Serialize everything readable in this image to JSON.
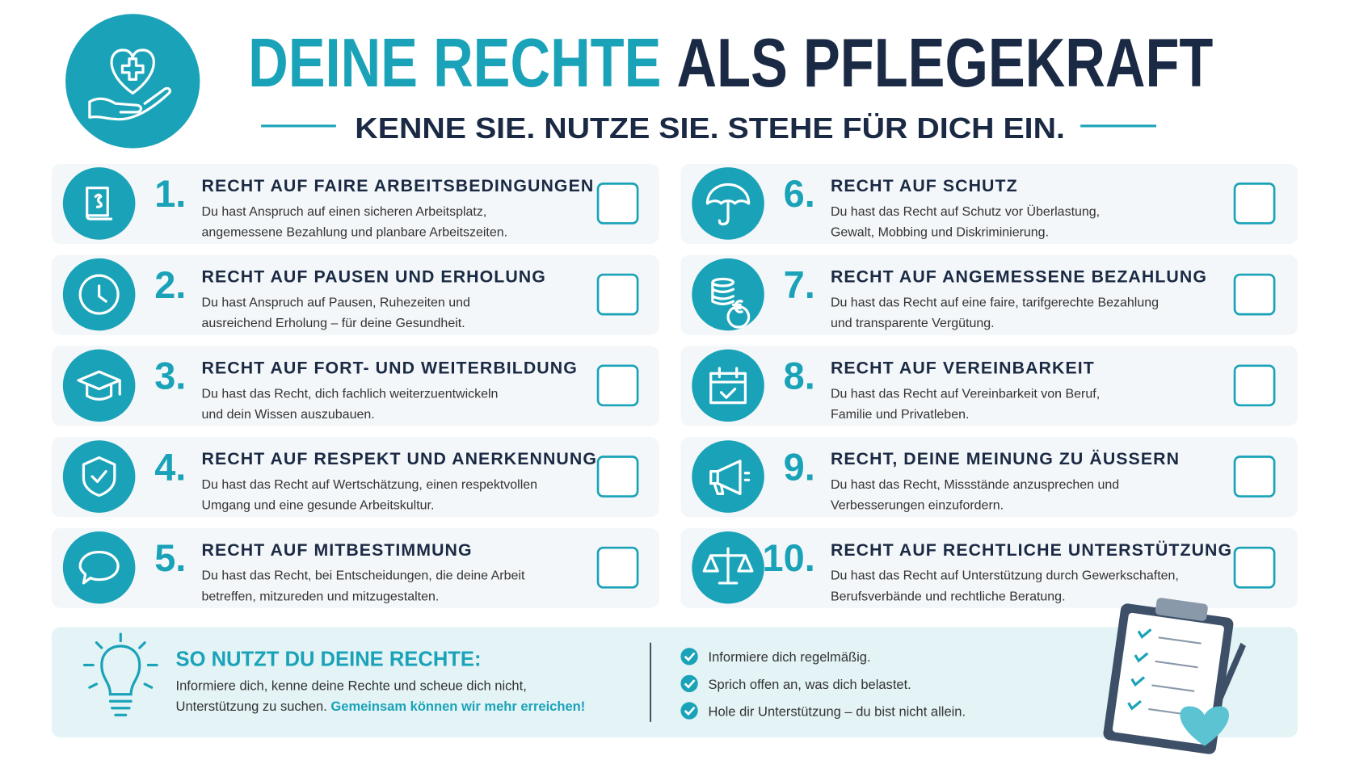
{
  "header": {
    "title_part1": "DEINE RECHTE",
    "title_part2": "ALS PFLEGEKRAFT",
    "subtitle": "KENNE SIE. NUTZE SIE. STEHE FÜR DICH EIN."
  },
  "rights": [
    {
      "number": "1.",
      "title": "RECHT AUF FAIRE ARBEITSBEDINGUNGEN",
      "lines": [
        "Du hast Anspruch auf einen sicheren Arbeitsplatz,",
        "angemessene Bezahlung und planbare Arbeitszeiten."
      ]
    },
    {
      "number": "2.",
      "title": "RECHT AUF PAUSEN UND ERHOLUNG",
      "lines": [
        "Du hast Anspruch auf Pausen, Ruhezeiten und",
        "ausreichend Erholung – für deine Gesundheit."
      ]
    },
    {
      "number": "3.",
      "title": "RECHT AUF FORT- UND WEITERBILDUNG",
      "lines": [
        "Du hast das Recht, dich fachlich weiterzuentwickeln",
        "und dein Wissen auszubauen."
      ]
    },
    {
      "number": "4.",
      "title": "RECHT AUF RESPEKT UND ANERKENNUNG",
      "lines": [
        "Du hast das Recht auf Wertschätzung, einen respektvollen",
        "Umgang und eine gesunde Arbeitskultur."
      ]
    },
    {
      "number": "5.",
      "title": "RECHT AUF MITBESTIMMUNG",
      "lines": [
        "Du hast das Recht, bei Entscheidungen, die deine Arbeit",
        "betreffen, mitzureden und mitzugestalten."
      ]
    },
    {
      "number": "6.",
      "title": "RECHT AUF SCHUTZ",
      "lines": [
        "Du hast das Recht auf Schutz vor Überlastung,",
        "Gewalt, Mobbing und Diskriminierung."
      ]
    },
    {
      "number": "7.",
      "title": "RECHT AUF ANGEMESSENE BEZAHLUNG",
      "lines": [
        "Du hast das Recht auf eine faire, tarifgerechte Bezahlung",
        "und transparente Vergütung."
      ]
    },
    {
      "number": "8.",
      "title": "RECHT AUF VEREINBARKEIT",
      "lines": [
        "Du hast das Recht auf Vereinbarkeit von Beruf,",
        "Familie und Privatleben."
      ]
    },
    {
      "number": "9.",
      "title": "RECHT, DEINE MEINUNG ZU ÄUSSERN",
      "lines": [
        "Du hast das Recht, Missstände anzusprechen und",
        "Verbesserungen einzufordern."
      ]
    },
    {
      "number": "10.",
      "title": "RECHT AUF RECHTLICHE UNTERSTÜTZUNG",
      "lines": [
        "Du hast das Recht auf Unterstützung durch Gewerkschaften,",
        "Berufsverbände und rechtliche Beratung."
      ]
    }
  ],
  "tips": {
    "heading": "SO NUTZT DU DEINE RECHTE:",
    "line1": "Informiere dich, kenne deine Rechte und scheue dich nicht,",
    "line2": "Unterstützung zu suchen.",
    "highlight": "Gemeinsam können wir mehr erreichen!",
    "checklist": [
      "Informiere dich regelmäßig.",
      "Sprich offen an, was dich belastet.",
      "Hole dir Unterstützung – du bist nicht allein."
    ]
  }
}
